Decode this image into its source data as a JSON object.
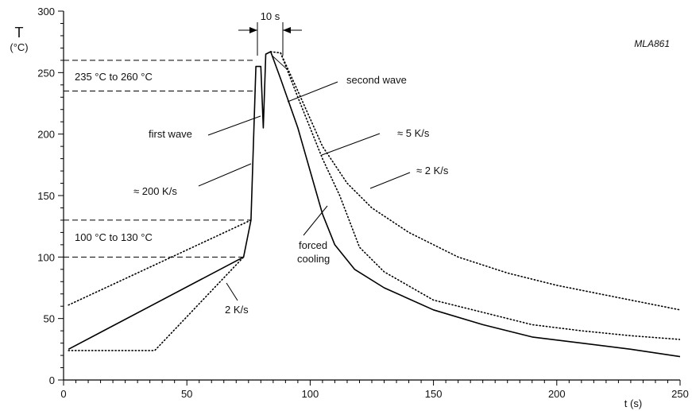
{
  "chart_data": {
    "type": "line",
    "ylabel": "T",
    "yunit": "(°C)",
    "xlabel": "t (s)",
    "code_label": "MLA861",
    "xlim": [
      0,
      250
    ],
    "ylim": [
      0,
      300
    ],
    "x_ticks": [
      0,
      50,
      100,
      150,
      200,
      250
    ],
    "y_ticks": [
      0,
      50,
      100,
      150,
      200,
      250,
      300
    ],
    "x_minor_step": 5,
    "y_minor_step": 10,
    "grid": false,
    "legend": "none",
    "series": [
      {
        "style": "solid",
        "points": [
          [
            2,
            25
          ],
          [
            73,
            100
          ],
          [
            76,
            130
          ],
          [
            78,
            255
          ],
          [
            80,
            255
          ],
          [
            81,
            205
          ],
          [
            82,
            265
          ],
          [
            84,
            267
          ],
          [
            88,
            245
          ],
          [
            95,
            205
          ],
          [
            100,
            170
          ],
          [
            105,
            135
          ],
          [
            110,
            110
          ],
          [
            118,
            90
          ],
          [
            130,
            75
          ],
          [
            150,
            57
          ],
          [
            170,
            45
          ],
          [
            190,
            35
          ],
          [
            210,
            30
          ],
          [
            230,
            25
          ],
          [
            250,
            19
          ]
        ]
      },
      {
        "style": "dotted",
        "points": [
          [
            2,
            61
          ],
          [
            76,
            130
          ]
        ]
      },
      {
        "style": "dotted",
        "points": [
          [
            2,
            24
          ],
          [
            37,
            24
          ],
          [
            73,
            100
          ]
        ]
      },
      {
        "style": "dotted",
        "points": [
          [
            84,
            267
          ],
          [
            88,
            266
          ],
          [
            95,
            235
          ],
          [
            105,
            190
          ],
          [
            115,
            160
          ],
          [
            125,
            140
          ],
          [
            140,
            120
          ],
          [
            160,
            100
          ],
          [
            180,
            87
          ],
          [
            200,
            77
          ],
          [
            225,
            67
          ],
          [
            250,
            57
          ]
        ]
      },
      {
        "style": "dotted",
        "points": [
          [
            88,
            266
          ],
          [
            95,
            230
          ],
          [
            105,
            180
          ],
          [
            112,
            150
          ],
          [
            120,
            108
          ],
          [
            130,
            88
          ],
          [
            150,
            65
          ],
          [
            170,
            55
          ],
          [
            190,
            45
          ],
          [
            210,
            40
          ],
          [
            230,
            36
          ],
          [
            250,
            33
          ]
        ]
      }
    ],
    "reference_lines": [
      {
        "y": 260,
        "x_to": 78
      },
      {
        "y": 235,
        "x_to": 78
      },
      {
        "y": 130,
        "x_to": 76
      },
      {
        "y": 100,
        "x_to": 73
      }
    ],
    "dimension": {
      "label": "10 s",
      "x_start": 78,
      "x_end": 88
    },
    "annotations": [
      {
        "text": "235 °C  to  260 °C"
      },
      {
        "text": "second wave"
      },
      {
        "text": "first wave"
      },
      {
        "text": "≈ 5 K/s"
      },
      {
        "text": "≈ 2 K/s"
      },
      {
        "text": "≈ 200 K/s"
      },
      {
        "text": "100 °C  to  130 °C"
      },
      {
        "text": "forced"
      },
      {
        "text": "cooling"
      },
      {
        "text": "2 K/s"
      }
    ]
  }
}
